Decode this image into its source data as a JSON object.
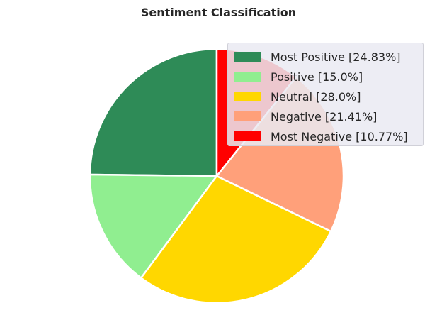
{
  "chart_data": {
    "type": "pie",
    "title": "Sentiment Classification",
    "slices": [
      {
        "label": "Most Positive [24.83%]",
        "value": 24.83,
        "color": "#2e8b57"
      },
      {
        "label": "Positive [15.0%]",
        "value": 15.0,
        "color": "#90ee90"
      },
      {
        "label": "Neutral [28.0%]",
        "value": 28.0,
        "color": "#ffd700"
      },
      {
        "label": "Negative [21.41%]",
        "value": 21.41,
        "color": "#ffa07a"
      },
      {
        "label": "Most Negative [10.77%]",
        "value": 10.77,
        "color": "#ff0000"
      }
    ],
    "start_angle": "top",
    "direction": "counterclockwise",
    "legend_position": "top-right"
  }
}
